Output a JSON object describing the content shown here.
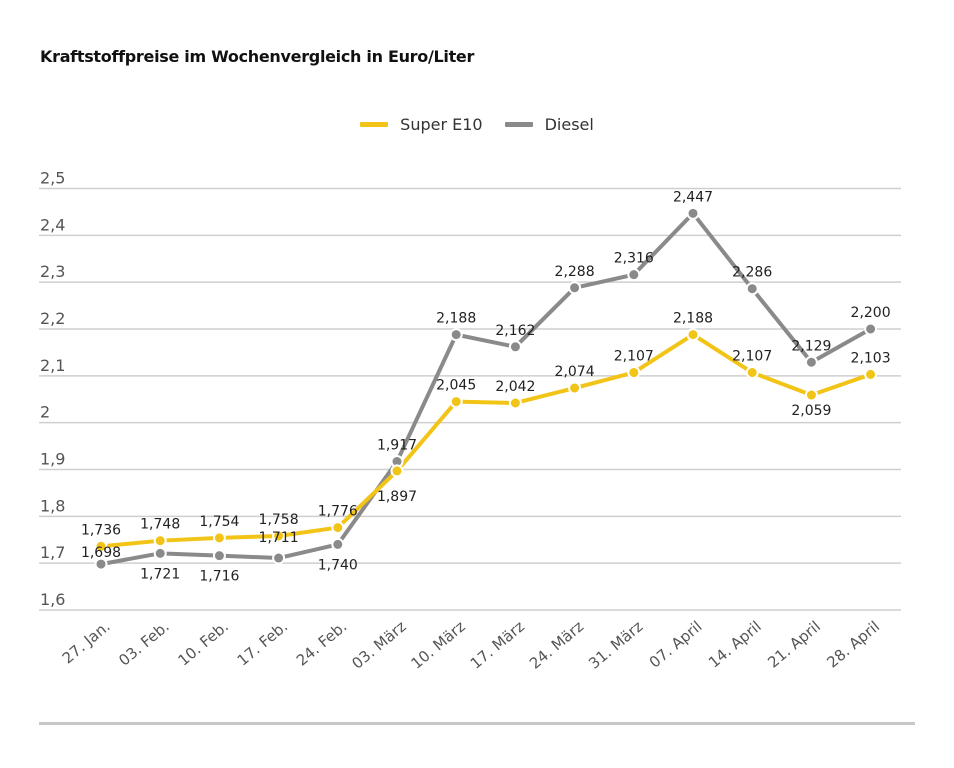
{
  "chart_data": {
    "type": "line",
    "title": "Kraftstoffpreise im Wochenvergleich in Euro/Liter",
    "xlabel": "",
    "ylabel": "",
    "ylim": [
      1.6,
      2.5
    ],
    "yticks": [
      1.6,
      1.7,
      1.8,
      1.9,
      2.0,
      2.1,
      2.2,
      2.3,
      2.4,
      2.5
    ],
    "ytick_labels": [
      "1,6",
      "1,7",
      "1,8",
      "1,9",
      "2",
      "2,1",
      "2,2",
      "2,3",
      "2,4",
      "2,5"
    ],
    "grid": true,
    "legend_position": "top-center",
    "categories": [
      "27. Jan.",
      "03. Feb.",
      "10. Feb.",
      "17. Feb.",
      "24. Feb.",
      "03. März",
      "10. März",
      "17. März",
      "24. März",
      "31. März",
      "07. April",
      "14. April",
      "21. April",
      "28. April"
    ],
    "series": [
      {
        "name": "Super E10",
        "color": "#f2c417",
        "values": [
          1.736,
          1.748,
          1.754,
          1.758,
          1.776,
          1.897,
          2.045,
          2.042,
          2.074,
          2.107,
          2.188,
          2.107,
          2.059,
          2.103
        ],
        "labels": [
          "1,736",
          "1,748",
          "1,754",
          "1,758",
          "1,776",
          "1,897",
          "2,045",
          "2,042",
          "2,074",
          "2,107",
          "2,188",
          "2,107",
          "2,059",
          "2,103"
        ]
      },
      {
        "name": "Diesel",
        "color": "#8a8a8a",
        "values": [
          1.698,
          1.721,
          1.716,
          1.711,
          1.74,
          1.917,
          2.188,
          2.162,
          2.288,
          2.316,
          2.447,
          2.286,
          2.129,
          2.2
        ],
        "labels": [
          "1,698",
          "1,721",
          "1,716",
          "1,711",
          "1,740",
          "1,917",
          "2,188",
          "2,162",
          "2,288",
          "2,316",
          "2,447",
          "2,286",
          "2,129",
          "2,200"
        ]
      }
    ]
  }
}
